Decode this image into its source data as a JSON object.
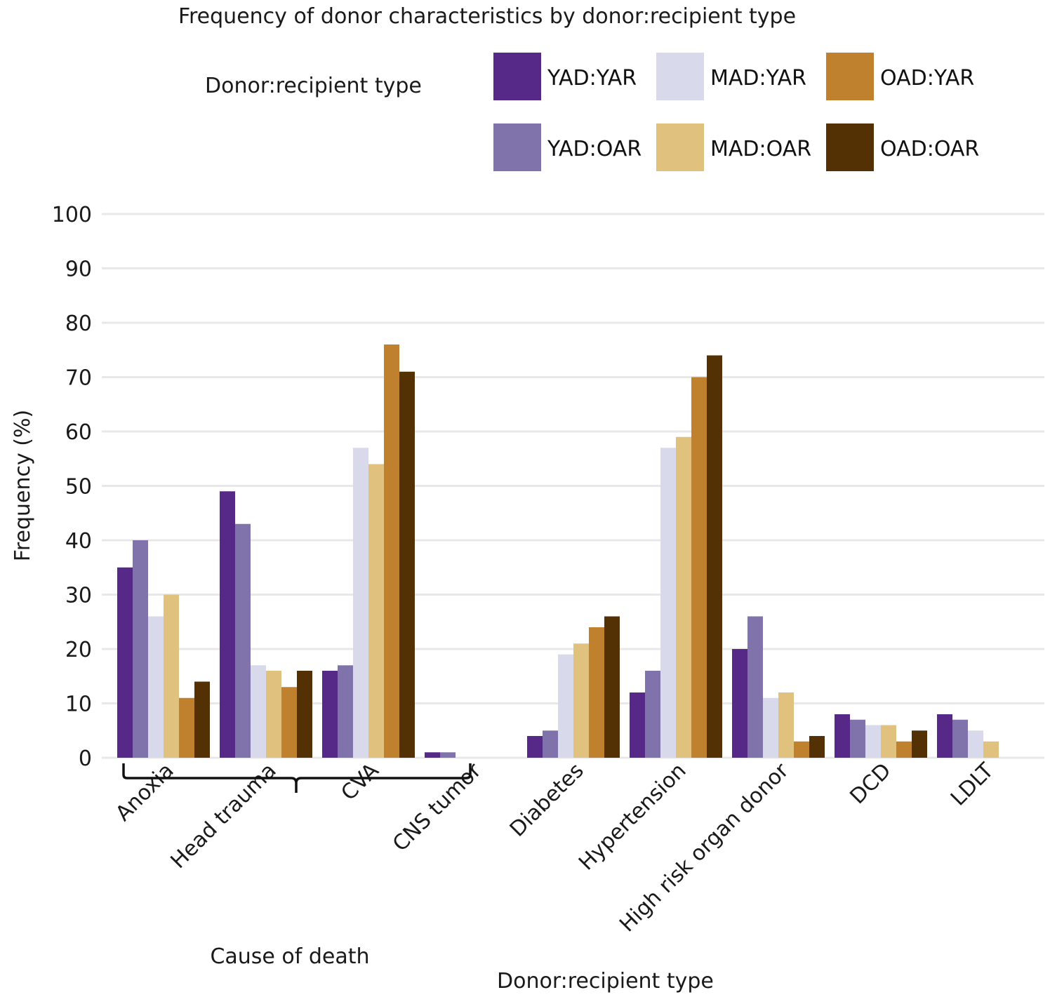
{
  "chart_data": {
    "type": "bar",
    "title": "Frequency of donor characteristics by donor:recipient type",
    "xlabel": "Donor:recipient type",
    "ylabel": "Frequency (%)",
    "ylim": [
      0,
      100
    ],
    "yticks": [
      0,
      10,
      20,
      30,
      40,
      50,
      60,
      70,
      80,
      90,
      100
    ],
    "grid": true,
    "legend": {
      "title": "Donor:recipient type",
      "placement": "top-right",
      "entries": [
        "YAD:YAR",
        "MAD:YAR",
        "OAD:YAR",
        "YAD:OAR",
        "MAD:OAR",
        "OAD:OAR"
      ]
    },
    "categories": [
      "Anoxia",
      "Head trauma",
      "CVA",
      "CNS tumor",
      "Diabetes",
      "Hypertension",
      "High risk organ donor",
      "DCD",
      "LDLT"
    ],
    "group_annotation": {
      "label": "Cause of death",
      "categories": [
        "Anoxia",
        "Head trauma",
        "CVA",
        "CNS tumor"
      ]
    },
    "series": [
      {
        "name": "YAD:YAR",
        "color": "#562887",
        "values": [
          35,
          49,
          16,
          1,
          4,
          12,
          20,
          8,
          8
        ]
      },
      {
        "name": "YAD:OAR",
        "color": "#8073AC",
        "values": [
          40,
          43,
          17,
          1,
          5,
          16,
          26,
          7,
          7
        ]
      },
      {
        "name": "MAD:YAR",
        "color": "#D8DAEB",
        "values": [
          26,
          17,
          57,
          0,
          19,
          57,
          11,
          6,
          5
        ]
      },
      {
        "name": "MAD:OAR",
        "color": "#E0C27E",
        "values": [
          30,
          16,
          54,
          0,
          21,
          59,
          12,
          6,
          3
        ]
      },
      {
        "name": "OAD:YAR",
        "color": "#BF812D",
        "values": [
          11,
          13,
          76,
          0,
          24,
          70,
          3,
          3,
          0
        ]
      },
      {
        "name": "OAD:OAR",
        "color": "#543005",
        "values": [
          14,
          16,
          71,
          0,
          26,
          74,
          4,
          5,
          0
        ]
      }
    ]
  }
}
